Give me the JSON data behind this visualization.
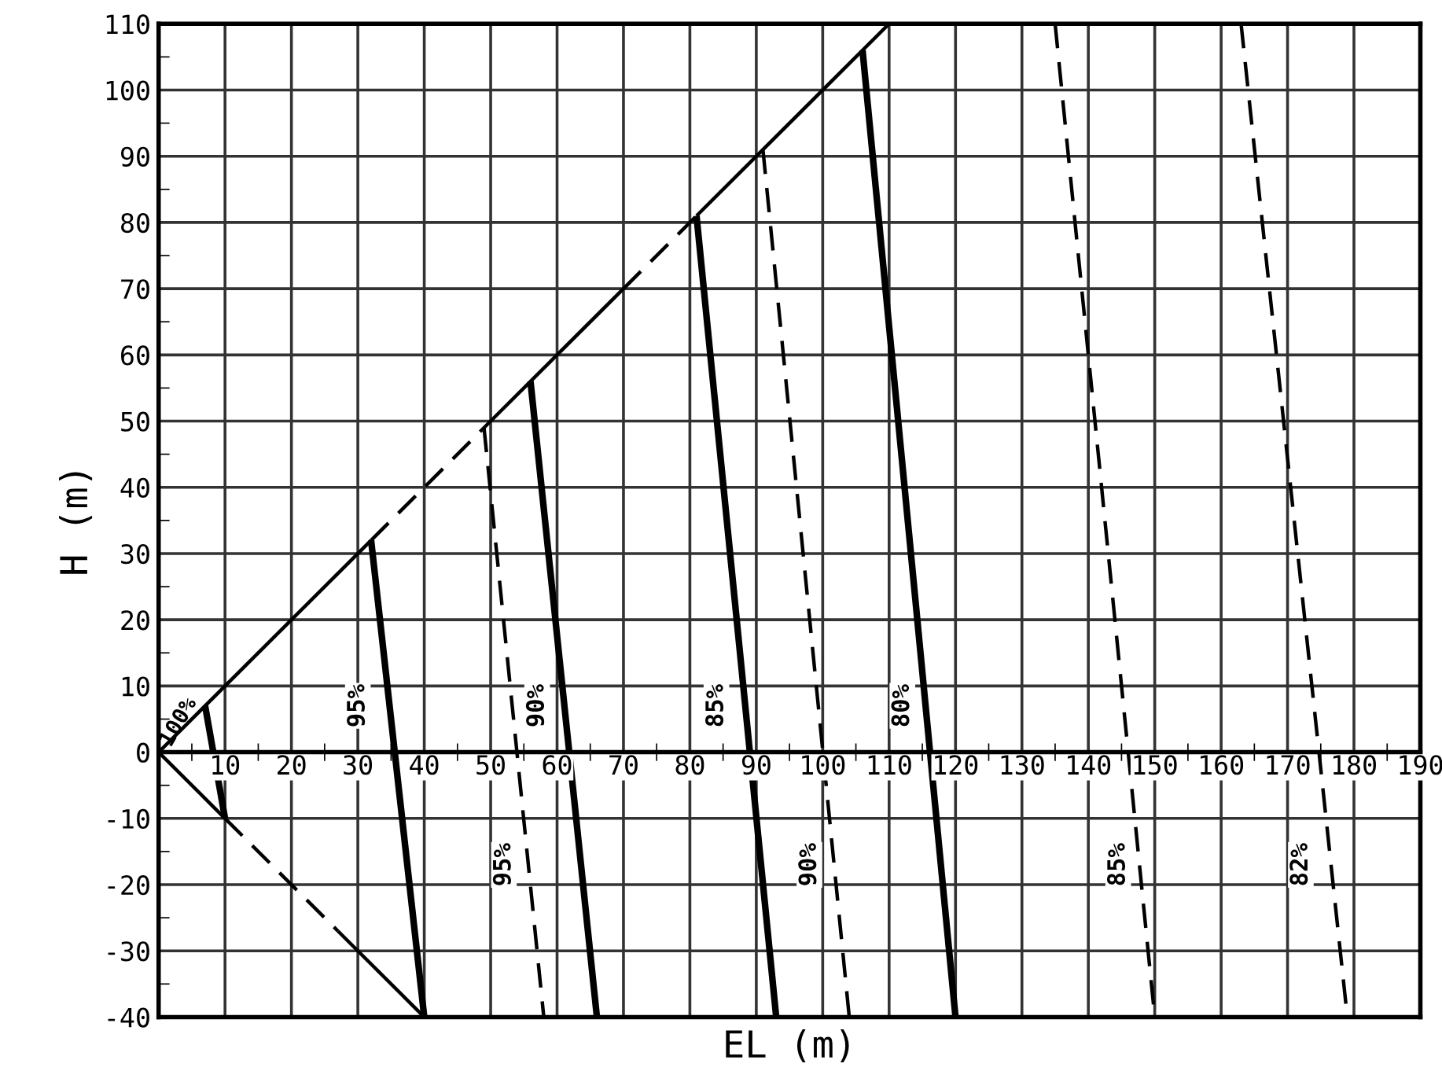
{
  "chart_data": {
    "type": "line",
    "xlabel": "EL (m)",
    "ylabel": "H (m)",
    "xlim": [
      0,
      190
    ],
    "xticks": [
      10,
      20,
      30,
      40,
      50,
      60,
      70,
      80,
      90,
      100,
      110,
      120,
      130,
      140,
      150,
      160,
      170,
      180,
      190
    ],
    "ylim": [
      -40,
      110
    ],
    "yticks": [
      -40,
      -30,
      -20,
      -10,
      0,
      10,
      20,
      30,
      40,
      50,
      60,
      70,
      80,
      90,
      100,
      110
    ],
    "grid": true,
    "marker": "none",
    "color": "#000000",
    "series": [
      {
        "x": [
          0,
          32
        ],
        "values": [
          0,
          32
        ],
        "line_style": "solid"
      },
      {
        "x": [
          32,
          50
        ],
        "values": [
          32,
          50
        ],
        "line_style": "dashed"
      },
      {
        "x": [
          50,
          70
        ],
        "values": [
          50,
          70
        ],
        "line_style": "solid"
      },
      {
        "x": [
          70,
          81
        ],
        "values": [
          70,
          81
        ],
        "line_style": "dashed"
      },
      {
        "x": [
          81,
          110
        ],
        "values": [
          81,
          110
        ],
        "line_style": "solid"
      },
      {
        "x": [
          0,
          10
        ],
        "values": [
          0,
          -10
        ],
        "line_style": "solid"
      },
      {
        "x": [
          10,
          27
        ],
        "values": [
          -10,
          -27
        ],
        "line_style": "dashed"
      },
      {
        "x": [
          27,
          40
        ],
        "values": [
          -27,
          -40
        ],
        "line_style": "solid"
      },
      {
        "x": [
          7,
          10
        ],
        "values": [
          7,
          -10
        ],
        "line_style": "solid"
      },
      {
        "x": [
          32,
          40
        ],
        "values": [
          32,
          -40
        ],
        "line_style": "solid"
      },
      {
        "x": [
          56,
          66
        ],
        "values": [
          56,
          -40
        ],
        "line_style": "solid"
      },
      {
        "x": [
          49,
          58
        ],
        "values": [
          49,
          -40
        ],
        "line_style": "dashed"
      },
      {
        "x": [
          81,
          93
        ],
        "values": [
          81,
          -40
        ],
        "line_style": "solid"
      },
      {
        "x": [
          91,
          104
        ],
        "values": [
          91,
          -40
        ],
        "line_style": "dashed"
      },
      {
        "x": [
          106,
          120
        ],
        "values": [
          106,
          -40
        ],
        "line_style": "solid"
      },
      {
        "x": [
          135,
          150
        ],
        "values": [
          110,
          -40
        ],
        "line_style": "dashed"
      },
      {
        "x": [
          163,
          179
        ],
        "values": [
          110,
          -40
        ],
        "line_style": "dashed"
      }
    ],
    "annotations": [
      {
        "text": "100%",
        "x": 3,
        "y": 4.5
      },
      {
        "text": "95%",
        "x": 30,
        "y": 7
      },
      {
        "text": "90%",
        "x": 57,
        "y": 7
      },
      {
        "text": "85%",
        "x": 84,
        "y": 7
      },
      {
        "text": "80%",
        "x": 112,
        "y": 7
      },
      {
        "text": "95%",
        "x": 52,
        "y": -17
      },
      {
        "text": "90%",
        "x": 98,
        "y": -17
      },
      {
        "text": "85%",
        "x": 144.5,
        "y": -17
      },
      {
        "text": "82%",
        "x": 172,
        "y": -17
      }
    ]
  }
}
